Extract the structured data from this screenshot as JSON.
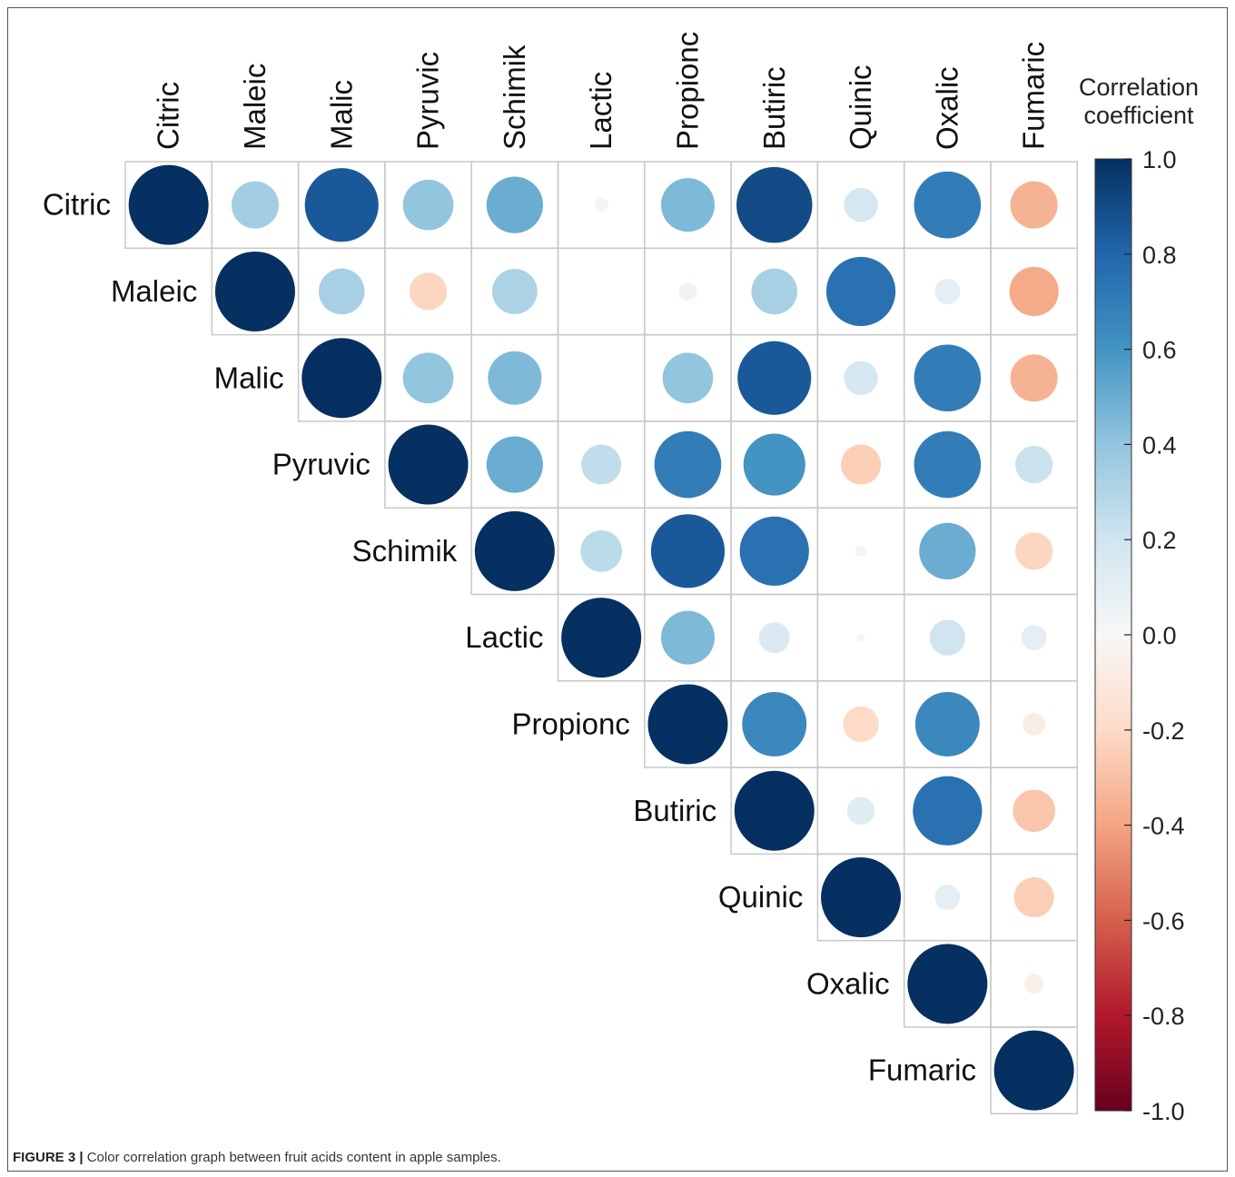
{
  "chart_data": {
    "type": "heatmap",
    "variables": [
      "Citric",
      "Maleic",
      "Malic",
      "Pyruvic",
      "Schimik",
      "Lactic",
      "Propionc",
      "Butiric",
      "Quinic",
      "Oxalic",
      "Fumaric"
    ],
    "matrix": [
      [
        1.0,
        0.35,
        0.85,
        0.4,
        0.5,
        -0.03,
        0.45,
        0.9,
        0.18,
        0.7,
        -0.35
      ],
      [
        null,
        1.0,
        0.33,
        -0.22,
        0.32,
        0.0,
        0.05,
        0.33,
        0.75,
        0.1,
        -0.38
      ],
      [
        null,
        null,
        1.0,
        0.4,
        0.45,
        0.0,
        0.4,
        0.85,
        0.18,
        0.7,
        -0.35
      ],
      [
        null,
        null,
        null,
        1.0,
        0.5,
        0.25,
        0.7,
        0.6,
        -0.25,
        0.7,
        0.22
      ],
      [
        null,
        null,
        null,
        null,
        1.0,
        0.27,
        0.85,
        0.75,
        0.02,
        0.5,
        -0.22
      ],
      [
        null,
        null,
        null,
        null,
        null,
        1.0,
        0.45,
        0.15,
        0.01,
        0.2,
        0.1
      ],
      [
        null,
        null,
        null,
        null,
        null,
        null,
        1.0,
        0.65,
        -0.2,
        0.65,
        -0.08
      ],
      [
        null,
        null,
        null,
        null,
        null,
        null,
        null,
        1.0,
        0.12,
        0.75,
        -0.28
      ],
      [
        null,
        null,
        null,
        null,
        null,
        null,
        null,
        null,
        1.0,
        0.1,
        -0.25
      ],
      [
        null,
        null,
        null,
        null,
        null,
        null,
        null,
        null,
        null,
        1.0,
        -0.06
      ],
      [
        null,
        null,
        null,
        null,
        null,
        null,
        null,
        null,
        null,
        null,
        1.0
      ]
    ],
    "legend": {
      "title_line1": "Correlation",
      "title_line2": "coefficient",
      "range": [
        -1.0,
        1.0
      ],
      "ticks": [
        "1.0",
        "0.8",
        "0.6",
        "0.4",
        "0.2",
        "0.0",
        "-0.2",
        "-0.4",
        "-0.6",
        "-0.8",
        "-1.0"
      ],
      "tick_values": [
        1.0,
        0.8,
        0.6,
        0.4,
        0.2,
        0.0,
        -0.2,
        -0.4,
        -0.6,
        -0.8,
        -1.0
      ],
      "placement": "right"
    },
    "colors": {
      "positive_end": "#053061",
      "neutral": "#f7f7f7",
      "negative_end": "#67001f",
      "grid": "#c8c8c8"
    }
  },
  "caption": {
    "label": "FIGURE 3 |",
    "text": "Color correlation graph between fruit acids content in apple samples."
  }
}
